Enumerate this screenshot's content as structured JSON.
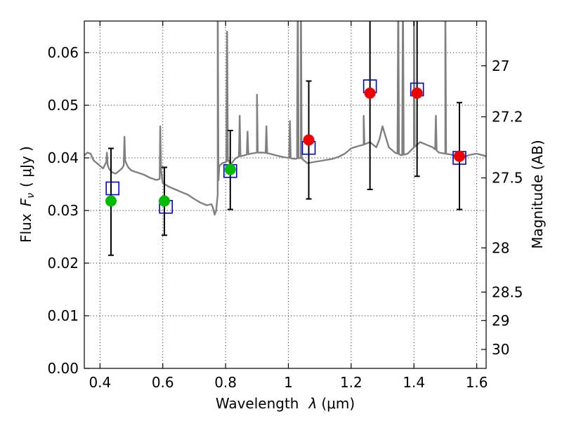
{
  "chart_data": {
    "type": "scatter",
    "title": "",
    "xlabel": "Wavelength",
    "xlabel_symbol": "λ",
    "xlabel_unit": "(μm)",
    "ylabel": "Flux",
    "ylabel_symbol": "F",
    "ylabel_sub": "ν",
    "ylabel_unit": "( μJy )",
    "y2label": "Magnitude (AB)",
    "xlim": [
      0.35,
      1.63
    ],
    "ylim": [
      0.0,
      0.066
    ],
    "grid": true,
    "xticks": [
      {
        "value": 0.4,
        "label": "0.4"
      },
      {
        "value": 0.6,
        "label": "0.6"
      },
      {
        "value": 0.8,
        "label": "0.8"
      },
      {
        "value": 1.0,
        "label": "1"
      },
      {
        "value": 1.2,
        "label": "1.2"
      },
      {
        "value": 1.4,
        "label": "1.4"
      },
      {
        "value": 1.6,
        "label": "1.6"
      }
    ],
    "yticks": [
      {
        "value": 0.0,
        "label": "0.00"
      },
      {
        "value": 0.01,
        "label": "0.01"
      },
      {
        "value": 0.02,
        "label": "0.02"
      },
      {
        "value": 0.03,
        "label": "0.03"
      },
      {
        "value": 0.04,
        "label": "0.04"
      },
      {
        "value": 0.05,
        "label": "0.05"
      },
      {
        "value": 0.06,
        "label": "0.06"
      }
    ],
    "y2ticks": [
      {
        "label": "27",
        "flux": 0.0575
      },
      {
        "label": "27.2",
        "flux": 0.0478
      },
      {
        "label": "27.5",
        "flux": 0.0362
      },
      {
        "label": "28",
        "flux": 0.0229
      },
      {
        "label": "28.5",
        "flux": 0.0145
      },
      {
        "label": "29",
        "flux": 0.0091
      },
      {
        "label": "30",
        "flux": 0.0036
      }
    ],
    "series": [
      {
        "name": "model-spectrum",
        "kind": "line",
        "color": "#808080",
        "x": [
          0.35,
          0.36,
          0.37,
          0.38,
          0.39,
          0.4,
          0.41,
          0.42,
          0.43,
          0.44,
          0.45,
          0.46,
          0.47,
          0.475,
          0.48,
          0.485,
          0.49,
          0.5,
          0.52,
          0.54,
          0.56,
          0.58,
          0.59,
          0.595,
          0.6,
          0.62,
          0.64,
          0.66,
          0.68,
          0.7,
          0.72,
          0.74,
          0.755,
          0.76,
          0.765,
          0.77,
          0.775,
          0.78,
          0.79,
          0.8,
          0.81,
          0.815,
          0.82,
          0.83,
          0.84,
          0.86,
          0.88,
          0.9,
          0.92,
          0.94,
          0.96,
          0.98,
          1.0,
          1.02,
          1.04,
          1.05,
          1.06,
          1.08,
          1.1,
          1.12,
          1.14,
          1.16,
          1.18,
          1.2,
          1.22,
          1.24,
          1.26,
          1.28,
          1.29,
          1.3,
          1.31,
          1.32,
          1.34,
          1.36,
          1.38,
          1.4,
          1.42,
          1.44,
          1.46,
          1.48,
          1.5,
          1.52,
          1.54,
          1.56,
          1.58,
          1.6,
          1.62,
          1.63
        ],
        "y": [
          0.0405,
          0.041,
          0.0408,
          0.0395,
          0.039,
          0.0385,
          0.038,
          0.0392,
          0.0378,
          0.0372,
          0.037,
          0.0375,
          0.038,
          0.0385,
          0.0395,
          0.0388,
          0.0382,
          0.0376,
          0.0372,
          0.0368,
          0.0362,
          0.0358,
          0.036,
          0.0375,
          0.0352,
          0.0345,
          0.034,
          0.0335,
          0.033,
          0.0322,
          0.0315,
          0.031,
          0.0312,
          0.0305,
          0.0292,
          0.03,
          0.033,
          0.0385,
          0.039,
          0.0392,
          0.0395,
          0.0388,
          0.039,
          0.0398,
          0.0402,
          0.0405,
          0.0408,
          0.041,
          0.041,
          0.0408,
          0.0405,
          0.0402,
          0.04,
          0.0398,
          0.04,
          0.0395,
          0.039,
          0.0392,
          0.0394,
          0.0396,
          0.0398,
          0.0402,
          0.0408,
          0.0418,
          0.0422,
          0.0425,
          0.043,
          0.042,
          0.0435,
          0.046,
          0.044,
          0.042,
          0.041,
          0.0405,
          0.0408,
          0.042,
          0.043,
          0.0425,
          0.042,
          0.041,
          0.0408,
          0.0406,
          0.0404,
          0.0402,
          0.0406,
          0.0408,
          0.0405,
          0.0403
        ]
      },
      {
        "name": "observed-flux",
        "kind": "errorbar",
        "color": "#000000",
        "x": [
          0.435,
          0.605,
          0.815,
          1.065,
          1.26,
          1.41,
          1.545
        ],
        "y": [
          0.0318,
          0.0318,
          0.0378,
          0.0434,
          0.0523,
          0.0523,
          0.0403
        ],
        "ylow": [
          0.0215,
          0.0253,
          0.0302,
          0.0322,
          0.034,
          0.0365,
          0.0302
        ],
        "yhigh": [
          0.0418,
          0.0382,
          0.0452,
          0.0546,
          0.072,
          0.072,
          0.0505
        ]
      },
      {
        "name": "model-photometry",
        "kind": "square",
        "color": "#0000cc",
        "x": [
          0.44,
          0.61,
          0.815,
          1.065,
          1.26,
          1.41,
          1.545
        ],
        "y": [
          0.0342,
          0.0307,
          0.0375,
          0.0419,
          0.0536,
          0.053,
          0.04
        ]
      },
      {
        "name": "detections-optical",
        "kind": "circle",
        "color": "#00bb00",
        "x": [
          0.435,
          0.605,
          0.815
        ],
        "y": [
          0.0318,
          0.0318,
          0.0378
        ]
      },
      {
        "name": "detections-nir",
        "kind": "circle",
        "color": "#ee0000",
        "x": [
          1.065,
          1.26,
          1.41,
          1.545
        ],
        "y": [
          0.0434,
          0.0523,
          0.0523,
          0.0403
        ]
      }
    ],
    "emission_lines": [
      {
        "x": 0.422,
        "peak": 0.041
      },
      {
        "x": 0.478,
        "peak": 0.044
      },
      {
        "x": 0.592,
        "peak": 0.046
      },
      {
        "x": 0.775,
        "peak": 0.072
      },
      {
        "x": 0.805,
        "peak": 0.064
      },
      {
        "x": 0.845,
        "peak": 0.048
      },
      {
        "x": 0.87,
        "peak": 0.045
      },
      {
        "x": 0.9,
        "peak": 0.052
      },
      {
        "x": 0.93,
        "peak": 0.046
      },
      {
        "x": 1.005,
        "peak": 0.047
      },
      {
        "x": 1.03,
        "peak": 0.072
      },
      {
        "x": 1.04,
        "peak": 0.072
      },
      {
        "x": 1.24,
        "peak": 0.048
      },
      {
        "x": 1.35,
        "peak": 0.072
      },
      {
        "x": 1.365,
        "peak": 0.072
      },
      {
        "x": 1.4,
        "peak": 0.072
      },
      {
        "x": 1.47,
        "peak": 0.048
      },
      {
        "x": 1.5,
        "peak": 0.072
      }
    ]
  }
}
